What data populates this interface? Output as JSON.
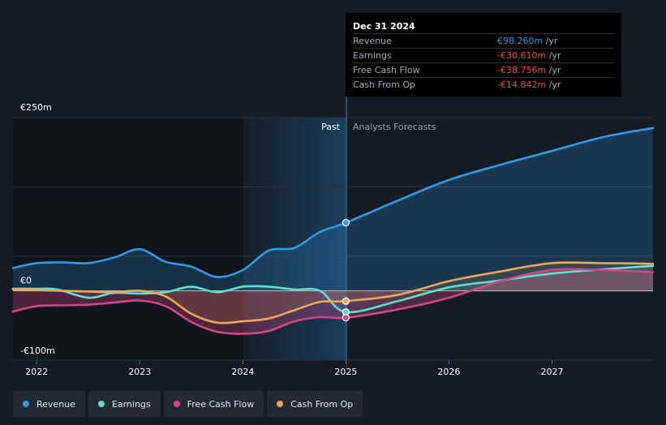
{
  "chart_data": {
    "type": "line",
    "x_axis": {
      "ticks": [
        "2022",
        "2023",
        "2024",
        "2025",
        "2026",
        "2027"
      ],
      "range": [
        2021.77,
        2027.98
      ]
    },
    "y_axis": {
      "ticks": [
        "€250m",
        "€0",
        "-€100m"
      ],
      "range": [
        -100,
        250
      ]
    },
    "divider_year": 2025.0,
    "past_label": "Past",
    "forecast_label": "Analysts Forecasts",
    "series": [
      {
        "name": "Revenue",
        "color": "#2f9be6",
        "points": [
          [
            2021.77,
            33
          ],
          [
            2022.0,
            40
          ],
          [
            2022.25,
            41
          ],
          [
            2022.5,
            40
          ],
          [
            2022.75,
            48
          ],
          [
            2023.0,
            60
          ],
          [
            2023.25,
            42
          ],
          [
            2023.5,
            35
          ],
          [
            2023.75,
            20
          ],
          [
            2024.0,
            30
          ],
          [
            2024.25,
            58
          ],
          [
            2024.5,
            62
          ],
          [
            2024.75,
            85
          ],
          [
            2025.0,
            98.26
          ],
          [
            2025.5,
            130
          ],
          [
            2026.0,
            160
          ],
          [
            2026.5,
            182
          ],
          [
            2027.0,
            202
          ],
          [
            2027.5,
            222
          ],
          [
            2027.98,
            235
          ]
        ]
      },
      {
        "name": "Earnings",
        "color": "#5ee0cf",
        "points": [
          [
            2021.77,
            3
          ],
          [
            2022.0,
            3
          ],
          [
            2022.2,
            2
          ],
          [
            2022.5,
            -10
          ],
          [
            2022.75,
            -3
          ],
          [
            2023.0,
            -4
          ],
          [
            2023.25,
            -2
          ],
          [
            2023.5,
            6
          ],
          [
            2023.75,
            -2
          ],
          [
            2024.0,
            6
          ],
          [
            2024.25,
            6
          ],
          [
            2024.5,
            2
          ],
          [
            2024.75,
            0
          ],
          [
            2025.0,
            -30.61
          ],
          [
            2025.5,
            -15
          ],
          [
            2026.0,
            5
          ],
          [
            2026.5,
            15
          ],
          [
            2027.0,
            25
          ],
          [
            2027.5,
            31
          ],
          [
            2027.98,
            36
          ]
        ]
      },
      {
        "name": "Free Cash Flow",
        "color": "#d1478a",
        "points": [
          [
            2021.77,
            -30
          ],
          [
            2022.0,
            -22
          ],
          [
            2022.25,
            -21
          ],
          [
            2022.5,
            -20
          ],
          [
            2022.75,
            -17
          ],
          [
            2023.0,
            -14
          ],
          [
            2023.25,
            -22
          ],
          [
            2023.5,
            -45
          ],
          [
            2023.75,
            -59
          ],
          [
            2024.0,
            -62
          ],
          [
            2024.25,
            -58
          ],
          [
            2024.5,
            -44
          ],
          [
            2024.75,
            -38
          ],
          [
            2025.0,
            -38.756
          ],
          [
            2025.5,
            -27
          ],
          [
            2026.0,
            -10
          ],
          [
            2026.5,
            14
          ],
          [
            2027.0,
            30
          ],
          [
            2027.5,
            30
          ],
          [
            2027.98,
            27
          ]
        ]
      },
      {
        "name": "Cash From Op",
        "color": "#e8a95b",
        "points": [
          [
            2021.77,
            2
          ],
          [
            2022.0,
            1
          ],
          [
            2022.25,
            0
          ],
          [
            2022.5,
            -1
          ],
          [
            2022.75,
            -2
          ],
          [
            2023.0,
            0
          ],
          [
            2023.25,
            -8
          ],
          [
            2023.5,
            -33
          ],
          [
            2023.75,
            -46
          ],
          [
            2024.0,
            -44
          ],
          [
            2024.25,
            -40
          ],
          [
            2024.5,
            -28
          ],
          [
            2024.75,
            -16
          ],
          [
            2025.0,
            -14.842
          ],
          [
            2025.5,
            -6
          ],
          [
            2026.0,
            14
          ],
          [
            2026.5,
            28
          ],
          [
            2027.0,
            40
          ],
          [
            2027.5,
            40
          ],
          [
            2027.98,
            39
          ]
        ]
      }
    ]
  },
  "tooltip": {
    "date": "Dec 31 2024",
    "rows": [
      {
        "label": "Revenue",
        "value": "€98.260m",
        "unit": "/yr",
        "sign": "pos"
      },
      {
        "label": "Earnings",
        "value": "-€30.610m",
        "unit": "/yr",
        "sign": "neg"
      },
      {
        "label": "Free Cash Flow",
        "value": "-€38.756m",
        "unit": "/yr",
        "sign": "neg"
      },
      {
        "label": "Cash From Op",
        "value": "-€14.842m",
        "unit": "/yr",
        "sign": "neg"
      }
    ]
  },
  "legend": [
    {
      "label": "Revenue",
      "color": "#2f9be6"
    },
    {
      "label": "Earnings",
      "color": "#5ee0cf"
    },
    {
      "label": "Free Cash Flow",
      "color": "#d1478a"
    },
    {
      "label": "Cash From Op",
      "color": "#e8a95b"
    }
  ]
}
